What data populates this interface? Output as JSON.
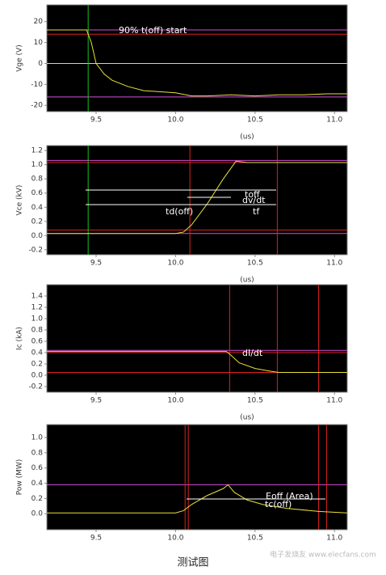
{
  "chart_data": [
    {
      "type": "line",
      "y_label": "Vge (V)",
      "x_label": "(us)",
      "color": "#e8e03a",
      "x": [
        9.19,
        9.3,
        9.44,
        9.47,
        9.5,
        9.55,
        9.6,
        9.7,
        9.8,
        9.9,
        10.0,
        10.1,
        10.2,
        10.35,
        10.5,
        10.65,
        10.8,
        10.95,
        11.08
      ],
      "values": [
        16,
        16,
        16,
        10,
        0,
        -5,
        -8,
        -11,
        -13,
        -13.5,
        -14,
        -15.5,
        -15.5,
        -15,
        -15.5,
        -15,
        -15,
        -14.5,
        -14.5
      ],
      "hlines": [
        {
          "value": 16,
          "color": "#d24fd8"
        },
        {
          "value": 14,
          "color": "#e02020"
        },
        {
          "value": 0,
          "color": "#e8e03a"
        },
        {
          "value": -16,
          "color": "#d24fd8"
        }
      ],
      "vlines": [
        {
          "value": 9.45,
          "color": "#19c419"
        }
      ],
      "annotations": [
        "90% t(off) start"
      ],
      "xlim": [
        9.19,
        11.08
      ],
      "ylim": [
        -23,
        28
      ],
      "xticks": [
        9.5,
        {
          "value": 10,
          "label": "10.0"
        },
        10.5,
        {
          "value": 11,
          "label": "11.0"
        }
      ],
      "yticks": [
        20,
        10,
        0,
        -10,
        -20
      ]
    },
    {
      "type": "line",
      "y_label": "Vce (kV)",
      "x_label": "(us)",
      "color": "#e8e03a",
      "x": [
        9.19,
        9.5,
        9.8,
        10.0,
        10.05,
        10.1,
        10.2,
        10.3,
        10.38,
        10.45,
        10.7,
        11.08
      ],
      "values": [
        0.03,
        0.03,
        0.03,
        0.03,
        0.05,
        0.15,
        0.45,
        0.8,
        1.05,
        1.03,
        1.03,
        1.03
      ],
      "hlines": [
        {
          "value": 1.06,
          "color": "#d24fd8"
        },
        {
          "value": 1.03,
          "color": "#e02020"
        },
        {
          "value": 0.08,
          "color": "#e02020"
        },
        {
          "value": 0.03,
          "color": "#d24fd8"
        }
      ],
      "vlines": [
        {
          "value": 9.45,
          "color": "#19c419"
        },
        {
          "value": 10.09,
          "color": "#e02020"
        },
        {
          "value": 10.64,
          "color": "#e02020"
        }
      ],
      "annotations": [
        "toff",
        "dv/dt",
        "td(off)",
        "tf"
      ],
      "xlim": [
        9.19,
        11.08
      ],
      "ylim": [
        -0.27,
        1.27
      ],
      "xticks": [
        9.5,
        {
          "value": 10,
          "label": "10.0"
        },
        10.5,
        {
          "value": 11,
          "label": "11.0"
        }
      ],
      "yticks": [
        1.2,
        {
          "value": 1,
          "label": "1.0"
        },
        0.8,
        0.6,
        0.4,
        0.2,
        {
          "value": 0,
          "label": "0.0"
        },
        -0.2
      ]
    },
    {
      "type": "line",
      "y_label": "Ic (kA)",
      "x_label": "(us)",
      "color": "#e8e03a",
      "x": [
        9.19,
        9.6,
        10.0,
        10.32,
        10.35,
        10.4,
        10.5,
        10.6,
        10.65,
        10.9,
        11.08
      ],
      "values": [
        0.42,
        0.42,
        0.42,
        0.42,
        0.35,
        0.22,
        0.12,
        0.07,
        0.05,
        0.05,
        0.05
      ],
      "hlines": [
        {
          "value": 0.44,
          "color": "#d24fd8"
        },
        {
          "value": 0.4,
          "color": "#e02020"
        },
        {
          "value": 0.05,
          "color": "#e02020"
        }
      ],
      "vlines": [
        {
          "value": 10.34,
          "color": "#e02020"
        },
        {
          "value": 10.64,
          "color": "#e02020"
        },
        {
          "value": 10.9,
          "color": "#e02020"
        }
      ],
      "annotations": [
        "dI/dt"
      ],
      "xlim": [
        9.19,
        11.08
      ],
      "ylim": [
        -0.3,
        1.6
      ],
      "xticks": [
        9.5,
        {
          "value": 10,
          "label": "10.0"
        },
        10.5,
        {
          "value": 11,
          "label": "11.0"
        }
      ],
      "yticks": [
        1.4,
        1.2,
        {
          "value": 1,
          "label": "1.0"
        },
        0.8,
        0.6,
        0.4,
        0.2,
        {
          "value": 0,
          "label": "0.0"
        },
        -0.2
      ]
    },
    {
      "type": "line",
      "y_label": "Pow (MW)",
      "color": "#e8e03a",
      "x": [
        9.19,
        9.6,
        10.0,
        10.05,
        10.1,
        10.2,
        10.3,
        10.33,
        10.37,
        10.45,
        10.55,
        10.7,
        10.9,
        11.08
      ],
      "values": [
        0.01,
        0.01,
        0.01,
        0.04,
        0.12,
        0.24,
        0.33,
        0.38,
        0.28,
        0.18,
        0.12,
        0.07,
        0.03,
        0.01
      ],
      "hlines": [
        {
          "value": 0.38,
          "color": "#d24fd8"
        }
      ],
      "vlines": [
        {
          "value": 10.06,
          "color": "#e02020"
        },
        {
          "value": 10.08,
          "color": "#e02020"
        },
        {
          "value": 10.9,
          "color": "#e02020"
        },
        {
          "value": 10.95,
          "color": "#e02020"
        }
      ],
      "annotations": [
        "Eoff (Area)",
        "tc(off)"
      ],
      "xlim": [
        9.19,
        11.08
      ],
      "ylim": [
        -0.21,
        1.17
      ],
      "xticks": [
        9.5,
        {
          "value": 10,
          "label": "10.0"
        },
        10.5,
        {
          "value": 11,
          "label": "11.0"
        }
      ],
      "yticks": [
        {
          "value": 1,
          "label": "1.0"
        },
        0.8,
        0.6,
        0.4,
        0.2,
        {
          "value": 0,
          "label": "0.0"
        }
      ]
    }
  ],
  "caption": "测试图",
  "watermark": "电子发烧友 www.elecfans.com"
}
